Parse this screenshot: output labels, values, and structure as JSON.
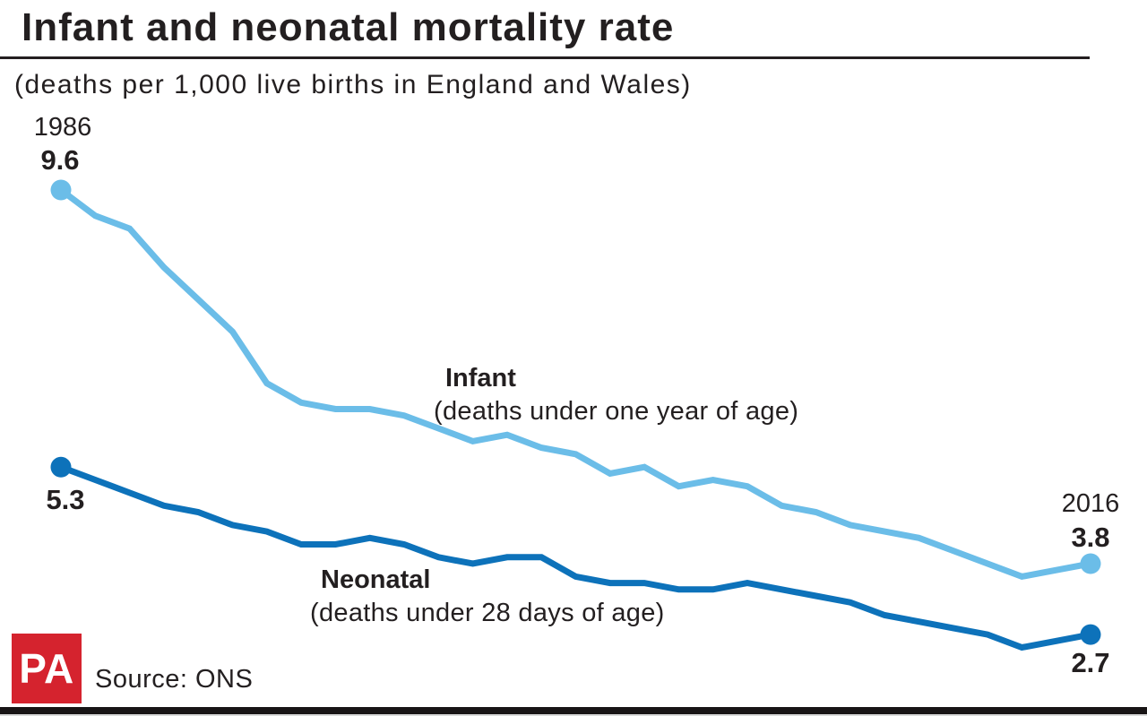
{
  "header": {
    "title": "Infant and neonatal mortality rate",
    "subtitle": "(deaths per 1,000 live births in England and Wales)"
  },
  "chart_data": {
    "type": "line",
    "title": "Infant and neonatal mortality rate",
    "subtitle": "(deaths per 1,000 live births in England and Wales)",
    "x": [
      1986,
      1987,
      1988,
      1989,
      1990,
      1991,
      1992,
      1993,
      1994,
      1995,
      1996,
      1997,
      1998,
      1999,
      2000,
      2001,
      2002,
      2003,
      2004,
      2005,
      2006,
      2007,
      2008,
      2009,
      2010,
      2011,
      2012,
      2013,
      2014,
      2015,
      2016
    ],
    "series": [
      {
        "id": "infant",
        "name": "Infant (deaths under one year of age)",
        "color": "#6bbde8",
        "values": [
          9.6,
          9.2,
          9.0,
          8.4,
          7.9,
          7.4,
          6.6,
          6.3,
          6.2,
          6.2,
          6.1,
          5.9,
          5.7,
          5.8,
          5.6,
          5.5,
          5.2,
          5.3,
          5.0,
          5.1,
          5.0,
          4.7,
          4.6,
          4.4,
          4.3,
          4.2,
          4.0,
          3.8,
          3.6,
          3.7,
          3.8
        ]
      },
      {
        "id": "neonatal",
        "name": "Neonatal (deaths under 28 days of age)",
        "color": "#0d72ba",
        "values": [
          5.3,
          5.1,
          4.9,
          4.7,
          4.6,
          4.4,
          4.3,
          4.1,
          4.1,
          4.2,
          4.1,
          3.9,
          3.8,
          3.9,
          3.9,
          3.6,
          3.5,
          3.5,
          3.4,
          3.4,
          3.5,
          3.4,
          3.3,
          3.2,
          3.0,
          2.9,
          2.8,
          2.7,
          2.5,
          2.6,
          2.7
        ]
      }
    ],
    "x_range": [
      1986,
      2016
    ],
    "grid": false,
    "legend": "inline-annotations",
    "annotations": {
      "start_year": "1986",
      "infant_start_value": "9.6",
      "neonatal_start_value": "5.3",
      "end_year": "2016",
      "infant_end_value": "3.8",
      "neonatal_end_value": "2.7",
      "infant_label": "Infant",
      "infant_sublabel": "(deaths under one year of age)",
      "neonatal_label": "Neonatal",
      "neonatal_sublabel": "(deaths under 28 days of age)"
    }
  },
  "footer": {
    "logo_text": "PA",
    "source": "Source: ONS"
  },
  "colors": {
    "infant_line": "#6bbde8",
    "neonatal_line": "#0d72ba",
    "pa_red": "#d5232e",
    "ink": "#231f20",
    "bottom_bar": "#181415"
  }
}
